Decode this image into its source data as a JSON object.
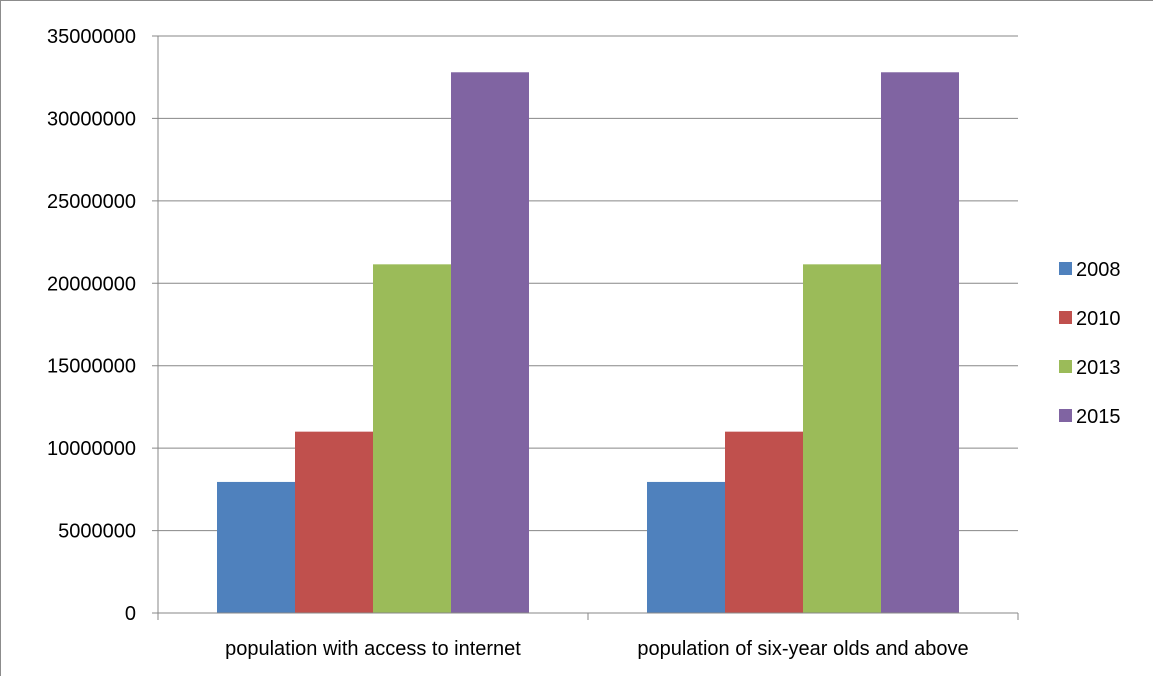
{
  "chart_data": {
    "type": "bar",
    "categories": [
      "population with access to internet",
      "population of six-year olds and above"
    ],
    "series": [
      {
        "name": "2008",
        "values": [
          7950000,
          7950000
        ],
        "color": "#4f81bd"
      },
      {
        "name": "2010",
        "values": [
          11000000,
          11000000
        ],
        "color": "#c0504d"
      },
      {
        "name": "2013",
        "values": [
          21150000,
          21150000
        ],
        "color": "#9bbb59"
      },
      {
        "name": "2015",
        "values": [
          32800000,
          32800000
        ],
        "color": "#8064a2"
      }
    ],
    "ylim": [
      0,
      35000000
    ],
    "yticks": [
      "0",
      "5000000",
      "10000000",
      "15000000",
      "20000000",
      "25000000",
      "30000000",
      "35000000"
    ],
    "grid": true,
    "legend": "right",
    "title": "",
    "xlabel": "",
    "ylabel": ""
  }
}
